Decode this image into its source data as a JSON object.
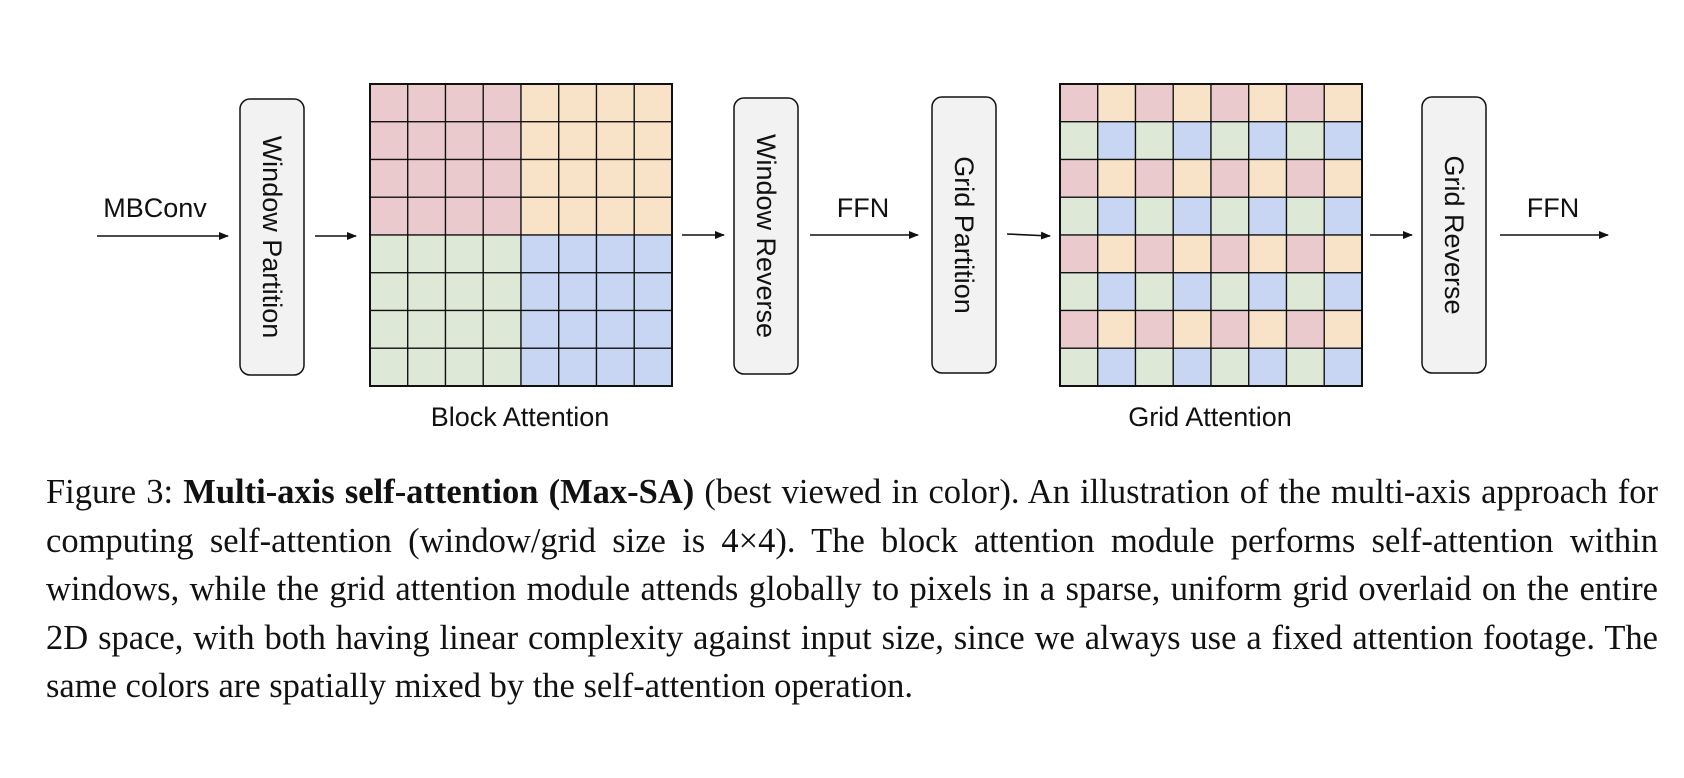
{
  "diagram": {
    "input_label": "MBConv",
    "window_partition": "Window Partition",
    "block_attention": "Block Attention",
    "window_reverse": "Window Reverse",
    "ffn_1": "FFN",
    "grid_partition": "Grid Partition",
    "grid_attention": "Grid Attention",
    "grid_reverse": "Grid Reverse",
    "ffn_2": "FFN",
    "colors": {
      "red": "#ebcacd",
      "orange": "#f8e3c9",
      "green": "#dde9d6",
      "blue": "#c9d6f3",
      "box_fill": "#f2f2f2",
      "line": "#111111"
    }
  },
  "caption": {
    "prefix": "Figure 3: ",
    "bold": "Multi-axis self-attention (Max-SA)",
    "body": " (best viewed in color). An illustration of the multi-axis approach for computing self-attention (window/grid size is 4×4). The block attention module performs self-attention within windows, while the grid attention module attends globally to pixels in a sparse, uniform grid overlaid on the entire 2D space, with both having linear complexity against input size, since we always use a fixed attention footage. The same colors are spatially mixed by the self-attention operation."
  }
}
